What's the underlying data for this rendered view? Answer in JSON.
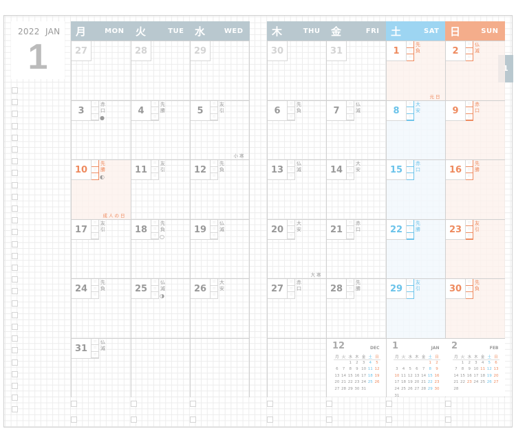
{
  "header": {
    "year": "2022",
    "month_abbr": "JAN",
    "month_number": "1",
    "side_tab": "1"
  },
  "colors": {
    "header": "#b9c8cf",
    "saturday_header": "#9dd5f2",
    "sunday_header": "#f4ad8b",
    "saturday_text": "#6bc3ea",
    "sunday_text": "#ee8a5e",
    "holiday_bg": "#fdf1ec",
    "saturday_bg": "#f1f8fd"
  },
  "weekdays": [
    {
      "kanji": "月",
      "en": "MON"
    },
    {
      "kanji": "火",
      "en": "TUE"
    },
    {
      "kanji": "水",
      "en": "WED"
    },
    {
      "kanji": "木",
      "en": "THU"
    },
    {
      "kanji": "金",
      "en": "FRI"
    },
    {
      "kanji": "土",
      "en": "SAT"
    },
    {
      "kanji": "日",
      "en": "SUN"
    }
  ],
  "weeks": [
    [
      {
        "d": "27",
        "muted": true
      },
      {
        "d": "28",
        "muted": true
      },
      {
        "d": "29",
        "muted": true
      },
      {
        "d": "30",
        "muted": true
      },
      {
        "d": "31",
        "muted": true
      },
      {
        "d": "1",
        "rokuyo": "先負",
        "holiday": true,
        "note": "元日"
      },
      {
        "d": "2",
        "rokuyo": "仏滅"
      }
    ],
    [
      {
        "d": "3",
        "rokuyo": "赤口",
        "moon": "●"
      },
      {
        "d": "4",
        "rokuyo": "先勝"
      },
      {
        "d": "5",
        "rokuyo": "友引",
        "note": "小寒"
      },
      {
        "d": "6",
        "rokuyo": "先負"
      },
      {
        "d": "7",
        "rokuyo": "仏滅"
      },
      {
        "d": "8",
        "rokuyo": "大安"
      },
      {
        "d": "9",
        "rokuyo": "赤口"
      }
    ],
    [
      {
        "d": "10",
        "rokuyo": "先勝",
        "moon": "◐",
        "holiday": true,
        "note": "成人の日"
      },
      {
        "d": "11",
        "rokuyo": "友引"
      },
      {
        "d": "12",
        "rokuyo": "先負"
      },
      {
        "d": "13",
        "rokuyo": "仏滅"
      },
      {
        "d": "14",
        "rokuyo": "大安"
      },
      {
        "d": "15",
        "rokuyo": "赤口"
      },
      {
        "d": "16",
        "rokuyo": "先勝"
      }
    ],
    [
      {
        "d": "17",
        "rokuyo": "友引"
      },
      {
        "d": "18",
        "rokuyo": "先負",
        "moon": "○"
      },
      {
        "d": "19",
        "rokuyo": "仏滅"
      },
      {
        "d": "20",
        "rokuyo": "大安",
        "note": "大寒"
      },
      {
        "d": "21",
        "rokuyo": "赤口"
      },
      {
        "d": "22",
        "rokuyo": "先勝"
      },
      {
        "d": "23",
        "rokuyo": "友引"
      }
    ],
    [
      {
        "d": "24",
        "rokuyo": "先負"
      },
      {
        "d": "25",
        "rokuyo": "仏滅",
        "moon": "◑"
      },
      {
        "d": "26",
        "rokuyo": "大安"
      },
      {
        "d": "27",
        "rokuyo": "赤口"
      },
      {
        "d": "28",
        "rokuyo": "先勝"
      },
      {
        "d": "29",
        "rokuyo": "友引"
      },
      {
        "d": "30",
        "rokuyo": "先負"
      }
    ],
    [
      {
        "d": "31",
        "rokuyo": "仏滅"
      },
      null,
      null,
      null,
      null,
      null,
      null
    ]
  ],
  "mini_calendars": [
    {
      "month": "12",
      "abbr": "DEC",
      "start": 2,
      "days": 31,
      "holidays": []
    },
    {
      "month": "1",
      "abbr": "JAN",
      "start": 5,
      "days": 31,
      "holidays": [
        1,
        10
      ]
    },
    {
      "month": "2",
      "abbr": "FEB",
      "start": 1,
      "days": 28,
      "holidays": [
        11,
        23
      ]
    }
  ],
  "mini_weekdays": [
    "月",
    "火",
    "水",
    "木",
    "金",
    "土",
    "日"
  ]
}
